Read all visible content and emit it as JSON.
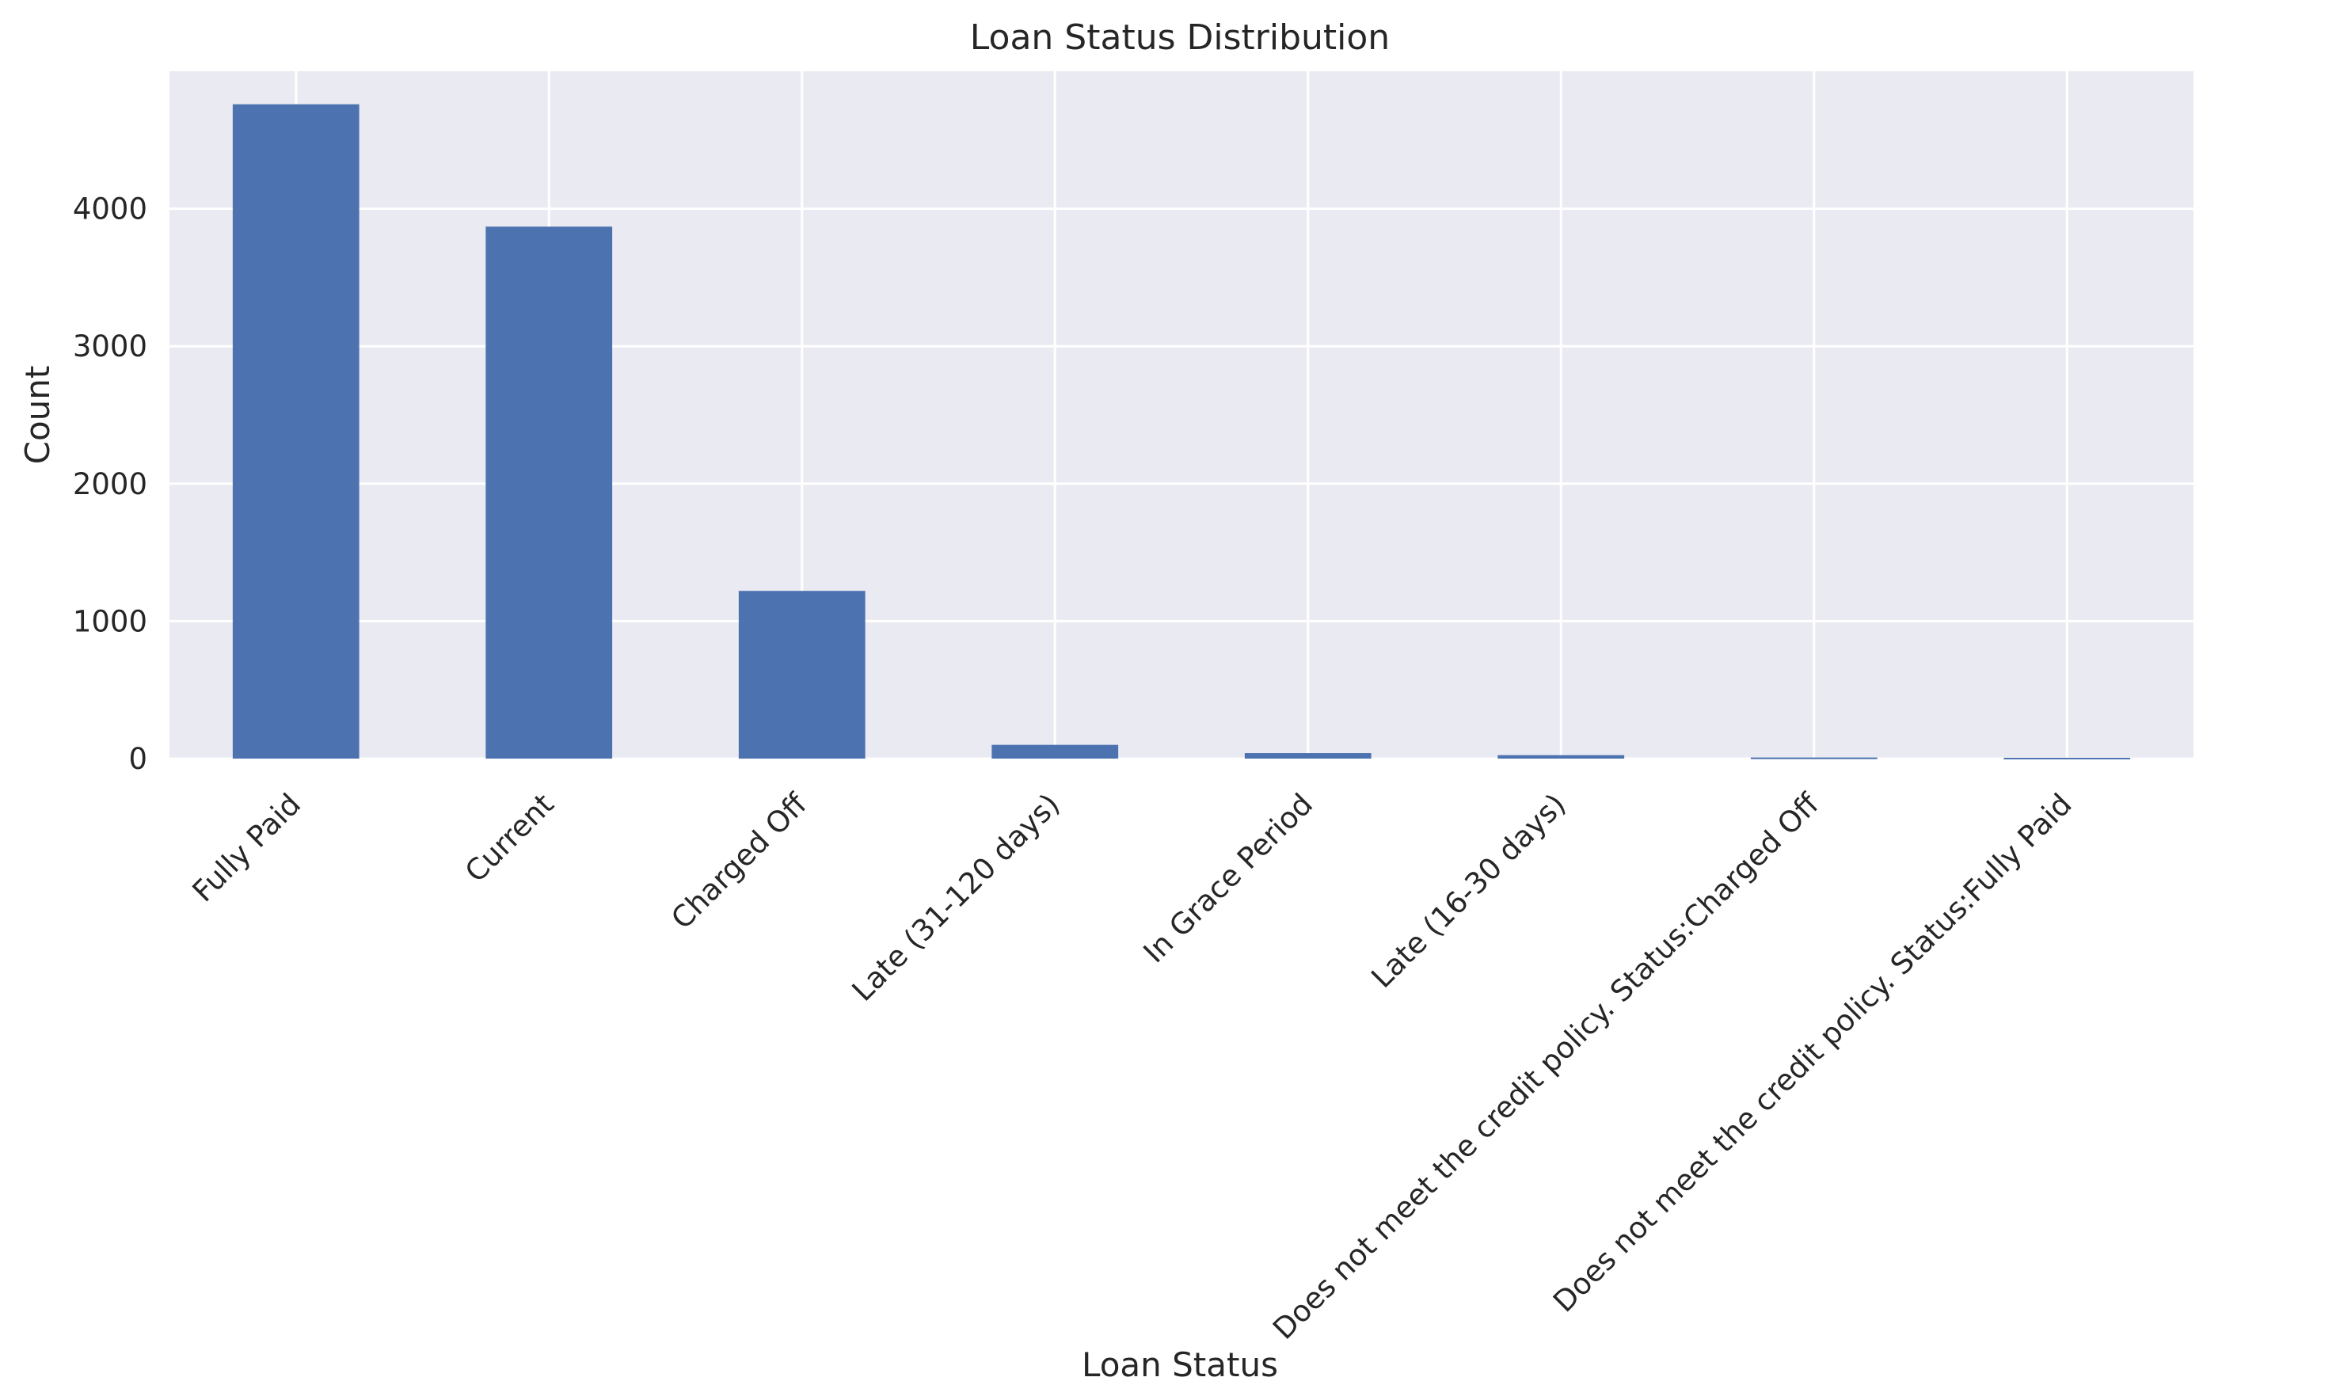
{
  "chart_data": {
    "type": "bar",
    "title": "Loan Status Distribution",
    "xlabel": "Loan Status",
    "ylabel": "Count",
    "categories": [
      "Fully Paid",
      "Current",
      "Charged Off",
      "Late (31-120 days)",
      "In Grace Period",
      "Late (16-30 days)",
      "Does not meet the credit policy. Status:Charged Off",
      "Does not meet the credit policy. Status:Fully Paid"
    ],
    "values": [
      4760,
      3870,
      1220,
      100,
      40,
      25,
      8,
      6
    ],
    "ylim": [
      0,
      5000
    ],
    "yticks": [
      0,
      1000,
      2000,
      3000,
      4000
    ],
    "grid": true,
    "legend": "none",
    "colors": {
      "bar": "#4c72b0",
      "background": "#eaeaf2",
      "grid": "#ffffff",
      "text": "#262626"
    }
  }
}
